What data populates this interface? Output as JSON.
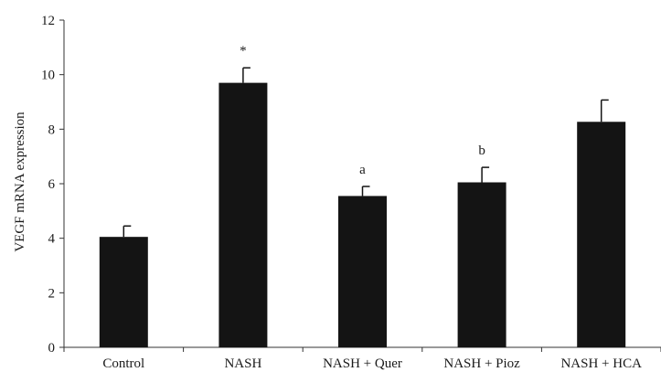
{
  "chart_data": {
    "type": "bar",
    "title": "",
    "xlabel": "",
    "ylabel": "VEGF mRNA expression",
    "ylim": [
      0,
      12
    ],
    "yticks": [
      0,
      2,
      4,
      6,
      8,
      10,
      12
    ],
    "grid": false,
    "bar_color": "#141414",
    "categories": [
      "Control",
      "NASH",
      "NASH + Quer",
      "NASH + Pioz",
      "NASH + HCA"
    ],
    "values": [
      4.05,
      9.7,
      5.55,
      6.05,
      8.27
    ],
    "errors": [
      0.4,
      0.55,
      0.35,
      0.55,
      0.8
    ],
    "annotations": [
      "",
      "*",
      "a",
      "b",
      ""
    ]
  }
}
